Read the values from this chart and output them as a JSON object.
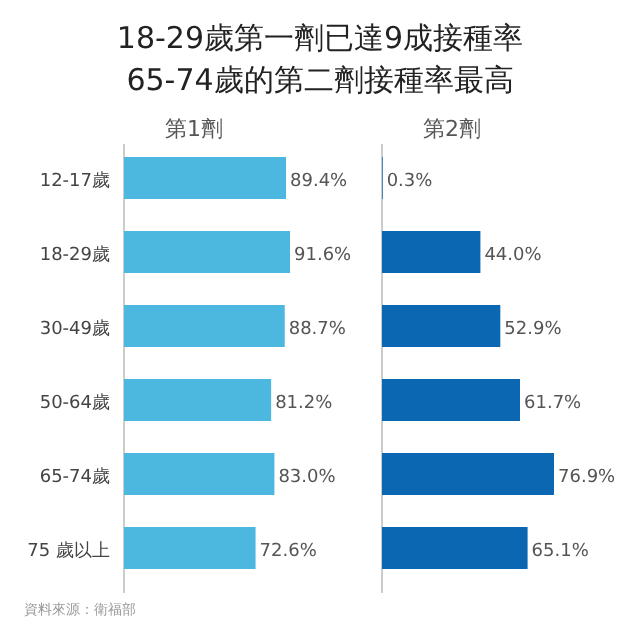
{
  "chart_data": [
    {
      "type": "other",
      "title": "18-29歲第一劑已達9成接種率",
      "subtitle": "65-74歲的第二劑接種率最高",
      "annotations": [
        "資料來源：衛福部"
      ]
    },
    {
      "type": "bar",
      "orientation": "horizontal",
      "title": "第1劑",
      "categories": [
        "12-17歲",
        "18-29歲",
        "30-49歲",
        "50-64歲",
        "65-74歲",
        "75 歲以上"
      ],
      "values": [
        89.4,
        91.6,
        88.7,
        81.2,
        83.0,
        72.6
      ],
      "value_labels": [
        "89.4%",
        "91.6%",
        "88.7%",
        "81.2%",
        "83.0%",
        "72.6%"
      ],
      "color": "#4db8df"
    },
    {
      "type": "bar",
      "orientation": "horizontal",
      "title": "第2劑",
      "categories": [
        null,
        null,
        null,
        null,
        null,
        null
      ],
      "values": [
        0.3,
        44.0,
        52.9,
        61.7,
        76.9,
        65.1
      ],
      "value_labels": [
        "0.3%",
        "44.0%",
        "52.9%",
        "61.7%",
        "76.9%",
        "65.1%"
      ],
      "color": "#0b67b2"
    }
  ]
}
